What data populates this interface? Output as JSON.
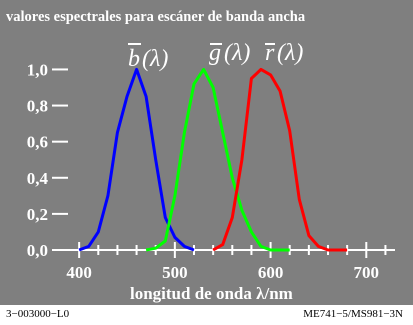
{
  "chart_data": {
    "type": "line",
    "title": "valores espectrales para escáner de banda ancha",
    "xlabel": "longitud de onda λ/nm",
    "ylabel": "",
    "xlim": [
      380,
      730
    ],
    "ylim": [
      0,
      1.08
    ],
    "x_ticks": [
      400,
      500,
      600,
      700
    ],
    "y_ticks": [
      "0,0",
      "0,2",
      "0,4",
      "0,6",
      "0,8",
      "1,0"
    ],
    "y_tick_values": [
      0,
      0.2,
      0.4,
      0.6,
      0.8,
      1.0
    ],
    "grid": false,
    "background": "#7f7f7f",
    "series": [
      {
        "name": "b(λ)",
        "color": "#0000ff",
        "x": [
          400,
          410,
          420,
          430,
          440,
          450,
          460,
          470,
          480,
          490,
          500,
          510,
          520
        ],
        "y": [
          0.0,
          0.02,
          0.1,
          0.3,
          0.65,
          0.85,
          1.0,
          0.85,
          0.5,
          0.18,
          0.07,
          0.02,
          0.0
        ]
      },
      {
        "name": "g(λ)",
        "color": "#00ff00",
        "x": [
          470,
          480,
          490,
          500,
          510,
          520,
          530,
          540,
          550,
          560,
          570,
          580,
          590,
          600,
          610,
          620
        ],
        "y": [
          0.0,
          0.01,
          0.05,
          0.3,
          0.65,
          0.92,
          1.0,
          0.9,
          0.65,
          0.4,
          0.22,
          0.1,
          0.02,
          0.0,
          0.0,
          0.0
        ]
      },
      {
        "name": "r(λ)",
        "color": "#ff0000",
        "x": [
          540,
          550,
          560,
          570,
          580,
          590,
          600,
          610,
          620,
          630,
          640,
          650,
          660,
          670,
          680
        ],
        "y": [
          0.0,
          0.03,
          0.18,
          0.5,
          0.95,
          1.0,
          0.97,
          0.88,
          0.66,
          0.28,
          0.08,
          0.02,
          0.0,
          0.0,
          0.0
        ]
      }
    ]
  },
  "labels": {
    "b": "b",
    "g": "g",
    "r": "r",
    "arg": "(λ)"
  },
  "footer": {
    "left": "3−003000−L0",
    "right": "ME741−5/MS981−3N"
  }
}
